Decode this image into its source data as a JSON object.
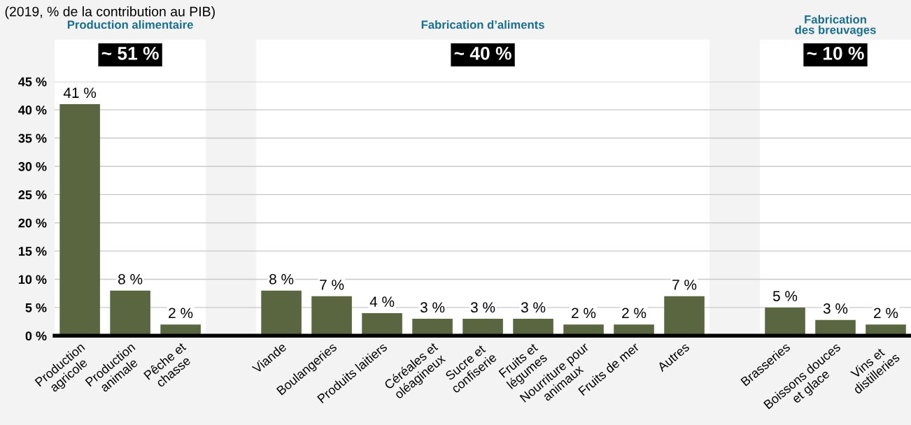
{
  "chart_data": {
    "type": "bar",
    "subtitle": "(2019, % de la contribution au PIB)",
    "categories": [
      "Production\nagricole",
      "Production\nanimale",
      "Pêche et\nchasse",
      null,
      "Viande",
      "Boulangeries",
      "Produits laitiers",
      "Céréales et\noléagineux",
      "Sucre et\nconfiserie",
      "Fruits et\nlégumes",
      "Nourriture pour\nanimaux",
      "Fruits de mer",
      "Autres",
      null,
      "Brasseries",
      "Boissons douces\net glace",
      "Vins et\ndistilleries"
    ],
    "values": [
      41,
      8,
      2,
      null,
      8,
      7,
      4,
      3,
      3,
      3,
      2,
      2,
      7,
      null,
      5,
      2.8,
      2
    ],
    "value_labels": [
      "41 %",
      "8 %",
      "2 %",
      null,
      "8 %",
      "7 %",
      "4 %",
      "3 %",
      "3 %",
      "3 %",
      "2 %",
      "2 %",
      "7 %",
      null,
      "5 %",
      "3 %",
      "2 %"
    ],
    "color": "#5a6640",
    "ylim": [
      0,
      45
    ],
    "yticks": [
      {
        "value": 0,
        "label": "0 %"
      },
      {
        "value": 5,
        "label": "5 %"
      },
      {
        "value": 10,
        "label": "10 %"
      },
      {
        "value": 15,
        "label": "15 %"
      },
      {
        "value": 20,
        "label": "20 %"
      },
      {
        "value": 25,
        "label": "25 %"
      },
      {
        "value": 30,
        "label": "30 %"
      },
      {
        "value": 35,
        "label": "35 %"
      },
      {
        "value": 40,
        "label": "40 %"
      },
      {
        "value": 45,
        "label": "45 %"
      }
    ],
    "grid": "y",
    "annotations": [
      "Production alimentaire",
      "Fabrication d’aliments",
      "Fabrication\ndes breuvages",
      "~ 51 %",
      "~ 40 %",
      "~ 10 %"
    ]
  }
}
